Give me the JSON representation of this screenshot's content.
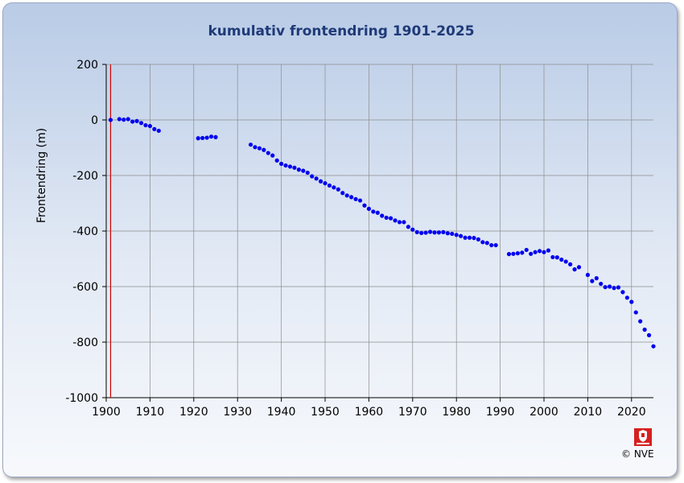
{
  "chart_data": {
    "type": "scatter",
    "title": "kumulativ frontendring 1901-2025",
    "xlabel": "",
    "ylabel": "Frontendring (m)",
    "xlim": [
      1900,
      2025
    ],
    "ylim": [
      -1000,
      200
    ],
    "x_ticks": [
      "1900",
      "1910",
      "1920",
      "1930",
      "1940",
      "1950",
      "1960",
      "1970",
      "1980",
      "1990",
      "2000",
      "2010",
      "2020"
    ],
    "y_ticks": [
      "200",
      "0",
      "-200",
      "-400",
      "-600",
      "-800",
      "-1000"
    ],
    "grid": true,
    "reference_line_x": 1901,
    "colors": {
      "points": "#0000ee",
      "reference_line": "#cc0000",
      "title": "#1f3a78"
    },
    "series": [
      {
        "x": [
          1901,
          1903,
          1904,
          1905,
          1906,
          1907,
          1908,
          1909,
          1910,
          1911,
          1912,
          1921,
          1922,
          1923,
          1924,
          1925,
          1933,
          1934,
          1935,
          1936,
          1937,
          1938,
          1939,
          1940,
          1941,
          1942,
          1943,
          1944,
          1945,
          1946,
          1947,
          1948,
          1949,
          1950,
          1951,
          1952,
          1953,
          1954,
          1955,
          1956,
          1957,
          1958,
          1959,
          1960,
          1961,
          1962,
          1963,
          1964,
          1965,
          1966,
          1967,
          1968,
          1969,
          1970,
          1971,
          1972,
          1973,
          1974,
          1975,
          1976,
          1977,
          1978,
          1979,
          1980,
          1981,
          1982,
          1983,
          1984,
          1985,
          1986,
          1987,
          1988,
          1989,
          1992,
          1993,
          1994,
          1995,
          1996,
          1997,
          1998,
          1999,
          2000,
          2001,
          2002,
          2003,
          2004,
          2005,
          2006,
          2007,
          2008,
          2010,
          2011,
          2012,
          2013,
          2014,
          2015,
          2016,
          2017,
          2018,
          2019,
          2020,
          2021,
          2022,
          2023,
          2024,
          2025
        ],
        "y": [
          0,
          3,
          1,
          3,
          -6,
          -4,
          -11,
          -19,
          -22,
          -33,
          -39,
          -66,
          -65,
          -64,
          -60,
          -62,
          -89,
          -98,
          -102,
          -108,
          -119,
          -128,
          -146,
          -158,
          -164,
          -168,
          -172,
          -179,
          -183,
          -190,
          -203,
          -211,
          -221,
          -228,
          -236,
          -243,
          -250,
          -263,
          -272,
          -278,
          -285,
          -290,
          -308,
          -320,
          -330,
          -334,
          -345,
          -352,
          -354,
          -362,
          -368,
          -368,
          -385,
          -395,
          -404,
          -407,
          -406,
          -403,
          -405,
          -405,
          -404,
          -408,
          -410,
          -414,
          -418,
          -424,
          -424,
          -425,
          -430,
          -440,
          -443,
          -451,
          -451,
          -483,
          -482,
          -480,
          -478,
          -468,
          -482,
          -476,
          -472,
          -476,
          -470,
          -494,
          -495,
          -503,
          -510,
          -520,
          -538,
          -530,
          -558,
          -580,
          -570,
          -590,
          -602,
          -600,
          -605,
          -603,
          -620,
          -640,
          -655,
          -693,
          -725,
          -755,
          -775,
          -815
        ]
      }
    ]
  },
  "footer": {
    "copyright": "© NVE"
  }
}
